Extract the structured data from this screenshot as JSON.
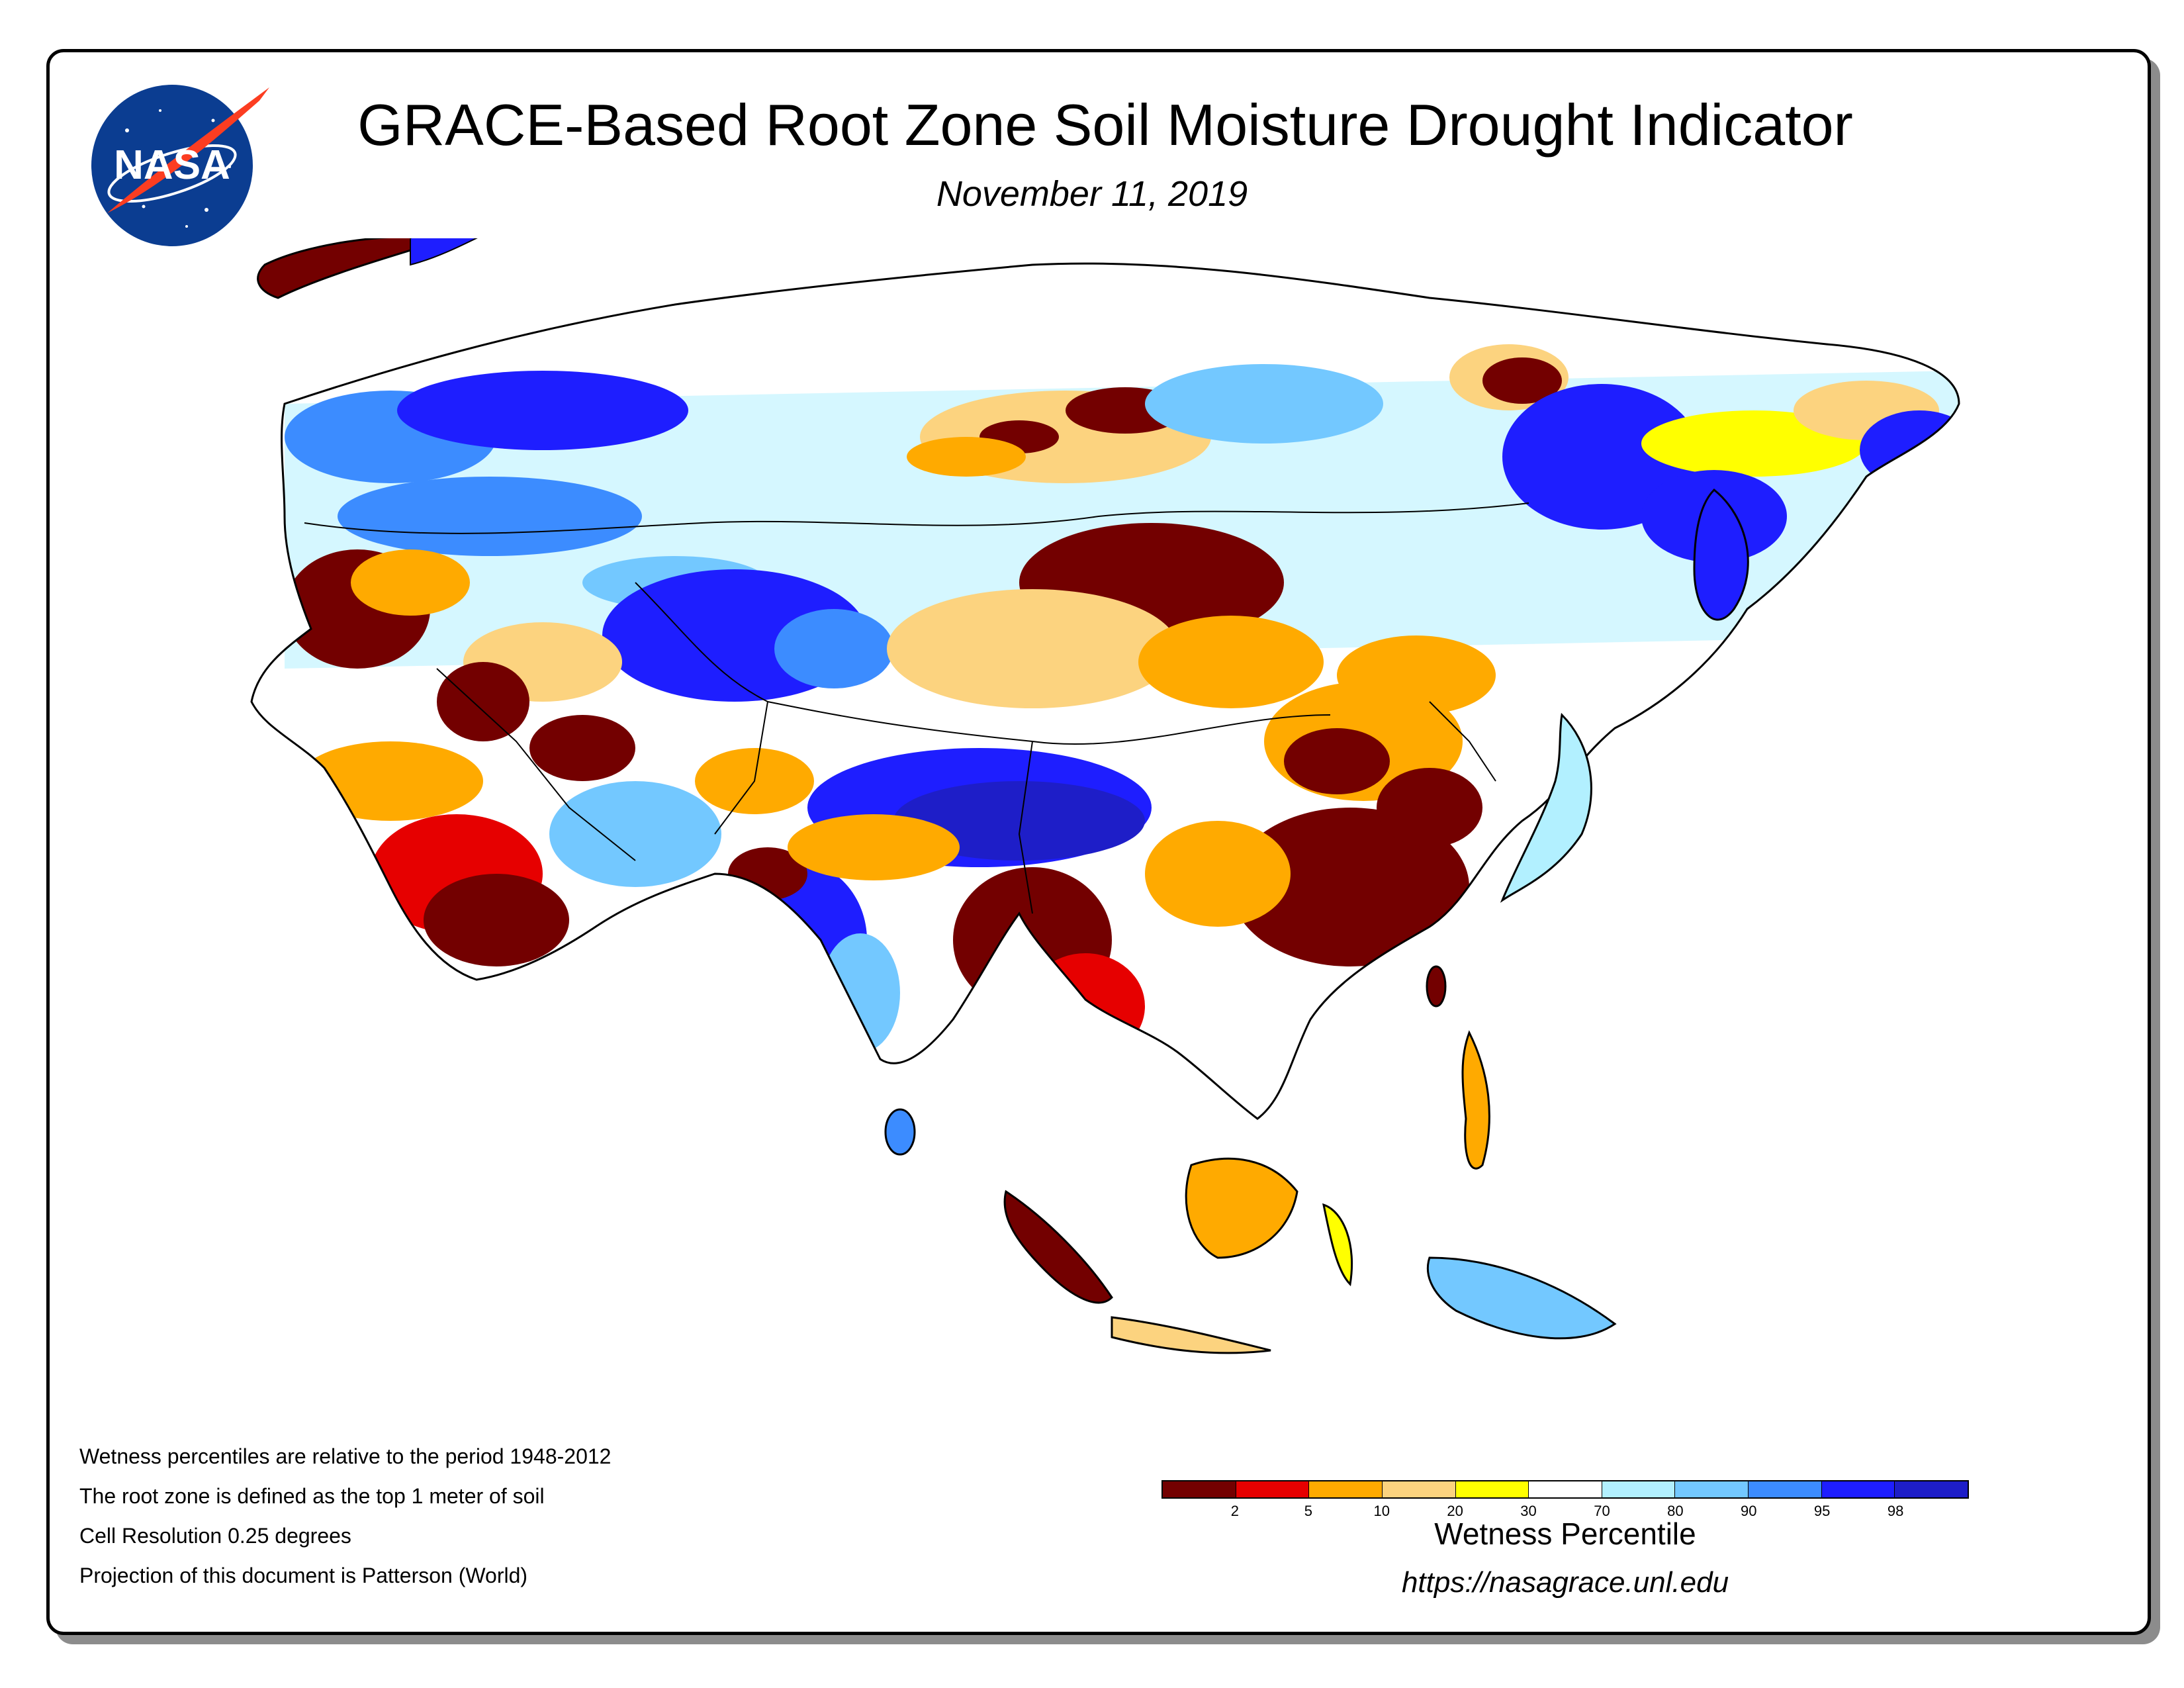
{
  "header": {
    "title": "GRACE-Based Root Zone Soil Moisture Drought Indicator",
    "date": "November 11, 2019",
    "logo_text": "NASA"
  },
  "notes": [
    "Wetness percentiles are relative to the period 1948-2012",
    "The root zone is defined as the top 1 meter of soil",
    "Cell Resolution 0.25 degrees",
    "Projection of this document is Patterson (World)"
  ],
  "legend": {
    "title": "Wetness Percentile",
    "colors": [
      "#730000",
      "#e60000",
      "#ffaa00",
      "#fcd37f",
      "#ffff00",
      "#ffffff",
      "#b2f0ff",
      "#73c8ff",
      "#3c8cff",
      "#1e1eff",
      "#1e1ec8"
    ],
    "tick_labels": [
      "2",
      "5",
      "10",
      "20",
      "30",
      "70",
      "80",
      "90",
      "95",
      "98"
    ]
  },
  "footer": {
    "url": "https://nasagrace.unl.edu"
  },
  "map": {
    "region": "Asia",
    "palette": {
      "drought_extreme": "#730000",
      "drought_exceptional_red": "#e60000",
      "dry": "#ffaa00",
      "dry_light": "#fcd37f",
      "abnormal_dry": "#ffff00",
      "normal": "#ffffff",
      "wet_light": "#b2f0ff",
      "wet": "#73c8ff",
      "wet_strong": "#3c8cff",
      "very_wet": "#1e1eff",
      "extreme_wet": "#1e1ec8"
    }
  }
}
